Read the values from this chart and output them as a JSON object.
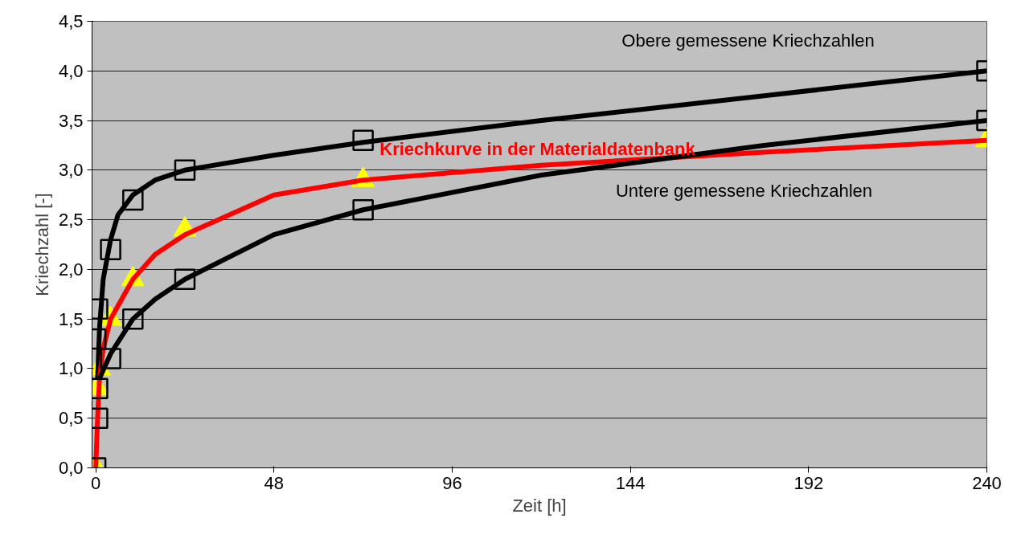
{
  "chart_data": {
    "type": "line",
    "xlabel": "Zeit [h]",
    "ylabel": "Kriechzahl [-]",
    "xlim": [
      -1,
      240
    ],
    "xticks": [
      0,
      48,
      96,
      144,
      192,
      240
    ],
    "ylim": [
      0,
      4.5
    ],
    "yticks": [
      {
        "value": 0,
        "label": "0,0"
      },
      {
        "value": 0.5,
        "label": "0,5"
      },
      {
        "value": 1,
        "label": "1,0"
      },
      {
        "value": 1.5,
        "label": "1,5"
      },
      {
        "value": 2,
        "label": "2,0"
      },
      {
        "value": 2.5,
        "label": "2,5"
      },
      {
        "value": 3,
        "label": "3,0"
      },
      {
        "value": 3.5,
        "label": "3,5"
      },
      {
        "value": 4,
        "label": "4,0"
      },
      {
        "value": 4.5,
        "label": "4,5"
      }
    ],
    "grid": "y",
    "line_style": "solid",
    "series": [
      {
        "color": "#000000",
        "marker": "none",
        "x": [
          0.5,
          1,
          2,
          4,
          6,
          10,
          16,
          24,
          48,
          72,
          120,
          180,
          240
        ],
        "values": [
          0.9,
          1.4,
          1.9,
          2.3,
          2.55,
          2.75,
          2.9,
          3.0,
          3.15,
          3.28,
          3.5,
          3.75,
          4.0
        ]
      },
      {
        "color": "#ff0000",
        "marker": "none",
        "x": [
          0,
          0.5,
          1,
          2,
          4,
          10,
          16,
          24,
          48,
          72,
          120,
          180,
          240
        ],
        "values": [
          0,
          0.5,
          0.9,
          1.2,
          1.5,
          1.9,
          2.15,
          2.35,
          2.75,
          2.9,
          3.05,
          3.18,
          3.3
        ]
      },
      {
        "color": "#000000",
        "marker": "none",
        "x": [
          1,
          4,
          10,
          16,
          24,
          48,
          72,
          120,
          180,
          240
        ],
        "values": [
          0.9,
          1.15,
          1.5,
          1.7,
          1.9,
          2.35,
          2.6,
          2.95,
          3.25,
          3.5
        ]
      },
      {
        "type": "scatter",
        "color": "#000000",
        "marker": "square",
        "x": [
          0,
          0.5,
          0.5,
          0,
          0.5,
          4,
          10,
          24,
          72,
          240,
          4,
          10,
          24,
          72,
          240
        ],
        "values": [
          0,
          0.5,
          0.8,
          1.3,
          1.6,
          2.2,
          2.7,
          3.0,
          3.3,
          4.0,
          1.1,
          1.5,
          1.9,
          2.6,
          3.5
        ]
      },
      {
        "type": "scatter",
        "color": "#ffff00",
        "marker": "triangle",
        "x": [
          0,
          0.5,
          1,
          4,
          10,
          24,
          72,
          240
        ],
        "values": [
          0,
          0.8,
          1.0,
          1.5,
          1.9,
          2.4,
          2.9,
          3.3
        ]
      }
    ],
    "annotations": [
      "Obere gemessene Kriechzahlen",
      "Kriechkurve in der Materialdatenbank",
      "Untere gemessene Kriechzahlen"
    ]
  }
}
